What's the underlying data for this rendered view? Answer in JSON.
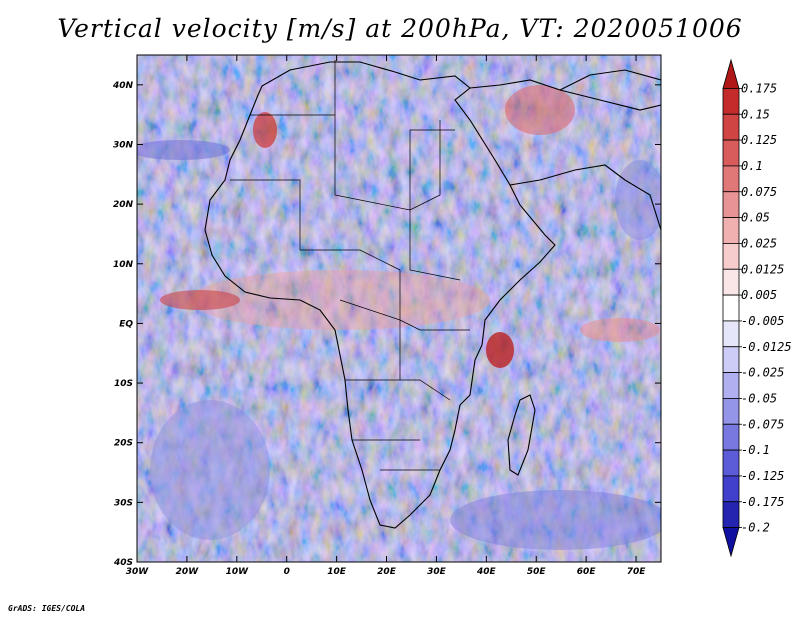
{
  "title": "Vertical velocity [m/s] at 200hPa, VT: 2020051006",
  "credit": "GrADS: IGES/COLA",
  "map": {
    "lat_labels": [
      "40N",
      "30N",
      "20N",
      "10N",
      "EQ",
      "10S",
      "20S",
      "30S",
      "40S"
    ],
    "lon_labels": [
      "30W",
      "20W",
      "10W",
      "0",
      "10E",
      "20E",
      "30E",
      "40E",
      "50E",
      "60E",
      "70E"
    ],
    "lon_range": [
      -30,
      75
    ],
    "lat_range": [
      -40,
      45
    ]
  },
  "colorbar": {
    "labels": [
      "0.175",
      "0.15",
      "0.125",
      "0.1",
      "0.075",
      "0.05",
      "0.025",
      "0.0125",
      "0.005",
      "-0.005",
      "-0.0125",
      "-0.025",
      "-0.05",
      "-0.075",
      "-0.1",
      "-0.125",
      "-0.175",
      "-0.2"
    ],
    "colors": [
      "#b01818",
      "#c42c2c",
      "#d04444",
      "#d85c5c",
      "#e07878",
      "#e89494",
      "#f0b0b0",
      "#f6cccc",
      "#fae6e6",
      "#ffffff",
      "#e6e6fa",
      "#ccccf6",
      "#b0b0f0",
      "#9494e8",
      "#7878e0",
      "#5c5cd8",
      "#4040cc",
      "#2424b0",
      "#1010a0"
    ]
  }
}
